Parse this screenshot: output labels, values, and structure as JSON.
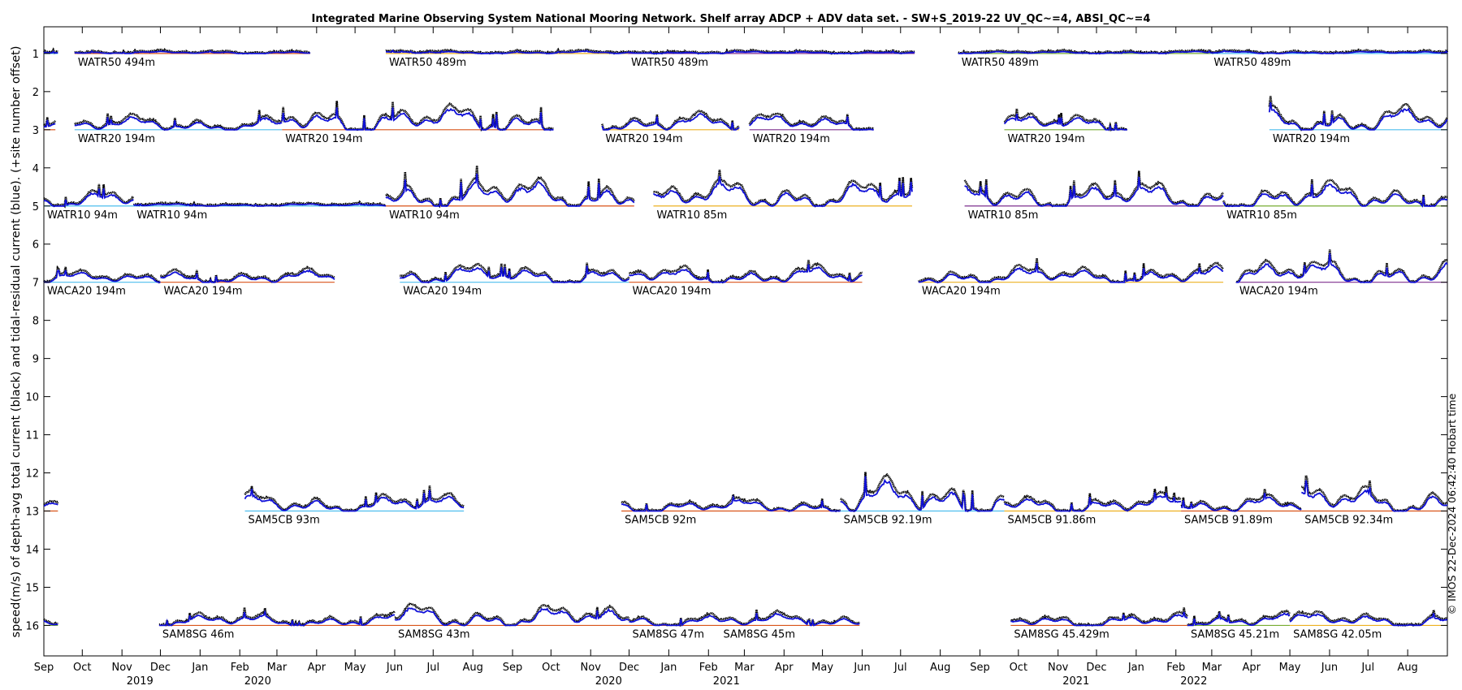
{
  "chart_data": {
    "type": "line",
    "title": "Integrated Marine Observing System National Mooring Network. Shelf array ADCP + ADV data set. - SW+S_2019-22 UV_QC~=4, ABSI_QC~=4",
    "ylabel": "speed(m/s) of depth-avg total current (black) and tidal-residual current (blue). (+site number offset)",
    "credit": "© IMOS 22-Dec-2024 06:42:40 Hobart time",
    "xlim": [
      "2019-09-01",
      "2022-09-01"
    ],
    "ylim": [
      16.8,
      0.3
    ],
    "y_axis_reversed": true,
    "grid": false,
    "y_ticks": [
      "1",
      "2",
      "3",
      "4",
      "5",
      "6",
      "7",
      "8",
      "9",
      "10",
      "11",
      "12",
      "13",
      "14",
      "15",
      "16"
    ],
    "x_ticks": [
      {
        "label": "Sep",
        "date": "2019-09-01"
      },
      {
        "label": "Oct",
        "date": "2019-10-01"
      },
      {
        "label": "Nov",
        "date": "2019-11-01"
      },
      {
        "label": "Dec",
        "date": "2019-12-01"
      },
      {
        "label": "Jan",
        "date": "2020-01-01"
      },
      {
        "label": "Feb",
        "date": "2020-02-01"
      },
      {
        "label": "Mar",
        "date": "2020-03-01"
      },
      {
        "label": "Apr",
        "date": "2020-04-01"
      },
      {
        "label": "May",
        "date": "2020-05-01"
      },
      {
        "label": "Jun",
        "date": "2020-06-01"
      },
      {
        "label": "Jul",
        "date": "2020-07-01"
      },
      {
        "label": "Aug",
        "date": "2020-08-01"
      },
      {
        "label": "Sep",
        "date": "2020-09-01"
      },
      {
        "label": "Oct",
        "date": "2020-10-01"
      },
      {
        "label": "Nov",
        "date": "2020-11-01"
      },
      {
        "label": "Dec",
        "date": "2020-12-01"
      },
      {
        "label": "Jan",
        "date": "2021-01-01"
      },
      {
        "label": "Feb",
        "date": "2021-02-01"
      },
      {
        "label": "Mar",
        "date": "2021-03-01"
      },
      {
        "label": "Apr",
        "date": "2021-04-01"
      },
      {
        "label": "May",
        "date": "2021-05-01"
      },
      {
        "label": "Jun",
        "date": "2021-06-01"
      },
      {
        "label": "Jul",
        "date": "2021-07-01"
      },
      {
        "label": "Aug",
        "date": "2021-08-01"
      },
      {
        "label": "Sep",
        "date": "2021-09-01"
      },
      {
        "label": "Oct",
        "date": "2021-10-01"
      },
      {
        "label": "Nov",
        "date": "2021-11-01"
      },
      {
        "label": "Dec",
        "date": "2021-12-01"
      },
      {
        "label": "Jan",
        "date": "2022-01-01"
      },
      {
        "label": "Feb",
        "date": "2022-02-01"
      },
      {
        "label": "Mar",
        "date": "2022-03-01"
      },
      {
        "label": "Apr",
        "date": "2022-04-01"
      },
      {
        "label": "May",
        "date": "2022-05-01"
      },
      {
        "label": "Jun",
        "date": "2022-06-01"
      },
      {
        "label": "Jul",
        "date": "2022-07-01"
      },
      {
        "label": "Aug",
        "date": "2022-08-01"
      }
    ],
    "year_labels": [
      {
        "label": "2019",
        "date": "2019-11-15"
      },
      {
        "label": "2020",
        "date": "2020-02-15"
      },
      {
        "label": "2020",
        "date": "2020-11-15"
      },
      {
        "label": "2021",
        "date": "2021-02-15"
      },
      {
        "label": "2021",
        "date": "2021-11-15"
      },
      {
        "label": "2022",
        "date": "2022-02-15"
      }
    ],
    "colors": {
      "total_current": "#000000",
      "residual_current": "#1010d8"
    },
    "deployments": [
      {
        "site": 1,
        "label": "",
        "start": "2019-09-01",
        "end": "2019-09-12",
        "baseline_color": "#4dbeee",
        "peak": 1.0
      },
      {
        "site": 1,
        "label": "WATR50 494m",
        "start": "2019-09-25",
        "end": "2020-03-27",
        "baseline_color": "#d95319",
        "peak": 1.55
      },
      {
        "site": 1,
        "label": "WATR50 489m",
        "start": "2020-05-25",
        "end": "2020-11-30",
        "baseline_color": "#edb120",
        "peak": 1.3
      },
      {
        "site": 1,
        "label": "WATR50 489m",
        "start": "2020-11-30",
        "end": "2021-07-12",
        "baseline_color": "#7e2f8e",
        "peak": 1.4
      },
      {
        "site": 1,
        "label": "WATR50 489m",
        "start": "2021-08-15",
        "end": "2022-02-28",
        "baseline_color": "#77ac30",
        "peak": 1.4
      },
      {
        "site": 1,
        "label": "WATR50 489m",
        "start": "2022-02-28",
        "end": "2022-09-01",
        "baseline_color": "#4dbeee",
        "peak": 1.45
      },
      {
        "site": 3,
        "label": "",
        "start": "2019-09-01",
        "end": "2019-09-10",
        "baseline_color": "#d95319",
        "peak": 2.6
      },
      {
        "site": 3,
        "label": "WATR20 194m",
        "start": "2019-09-25",
        "end": "2020-03-05",
        "baseline_color": "#4dbeee",
        "peak": 2.5
      },
      {
        "site": 3,
        "label": "WATR20 194m",
        "start": "2020-03-05",
        "end": "2020-10-03",
        "baseline_color": "#d95319",
        "peak": 2.1
      },
      {
        "site": 3,
        "label": "WATR20 194m",
        "start": "2020-11-10",
        "end": "2021-02-25",
        "baseline_color": "#edb120",
        "peak": 2.4
      },
      {
        "site": 3,
        "label": "WATR20 194m",
        "start": "2021-03-05",
        "end": "2021-06-10",
        "baseline_color": "#7e2f8e",
        "peak": 2.4
      },
      {
        "site": 3,
        "label": "WATR20 194m",
        "start": "2021-09-20",
        "end": "2021-12-25",
        "baseline_color": "#77ac30",
        "peak": 2.4
      },
      {
        "site": 3,
        "label": "WATR20 194m",
        "start": "2022-04-15",
        "end": "2022-09-01",
        "baseline_color": "#4dbeee",
        "peak": 2.15
      },
      {
        "site": 5,
        "label": "WATR10 94m",
        "start": "2019-09-01",
        "end": "2019-11-10",
        "baseline_color": "#4dbeee",
        "peak": 4.4
      },
      {
        "site": 5,
        "label": "WATR10 94m",
        "start": "2019-11-10",
        "end": "2020-05-25",
        "baseline_color": "#4dbeee",
        "peak": 5.0
      },
      {
        "site": 5,
        "label": "WATR10 94m",
        "start": "2020-05-25",
        "end": "2020-12-05",
        "baseline_color": "#d95319",
        "peak": 3.95
      },
      {
        "site": 5,
        "label": "WATR10 85m",
        "start": "2020-12-20",
        "end": "2021-07-10",
        "baseline_color": "#edb120",
        "peak": 4.05
      },
      {
        "site": 5,
        "label": "WATR10 85m",
        "start": "2021-08-20",
        "end": "2022-03-10",
        "baseline_color": "#7e2f8e",
        "peak": 4.1
      },
      {
        "site": 5,
        "label": "WATR10 85m",
        "start": "2022-03-10",
        "end": "2022-09-01",
        "baseline_color": "#77ac30",
        "peak": 4.15
      },
      {
        "site": 7,
        "label": "WACA20 194m",
        "start": "2019-09-01",
        "end": "2019-12-01",
        "baseline_color": "#4dbeee",
        "peak": 6.6
      },
      {
        "site": 7,
        "label": "WACA20 194m",
        "start": "2019-12-01",
        "end": "2020-04-15",
        "baseline_color": "#d95319",
        "peak": 6.55
      },
      {
        "site": 7,
        "label": "WACA20 194m",
        "start": "2020-06-05",
        "end": "2020-12-01",
        "baseline_color": "#4dbeee",
        "peak": 6.35
      },
      {
        "site": 7,
        "label": "WACA20 194m",
        "start": "2020-12-01",
        "end": "2021-06-01",
        "baseline_color": "#d95319",
        "peak": 6.4
      },
      {
        "site": 7,
        "label": "WACA20 194m",
        "start": "2021-07-15",
        "end": "2022-03-10",
        "baseline_color": "#edb120",
        "peak": 6.4
      },
      {
        "site": 7,
        "label": "WACA20 194m",
        "start": "2022-03-20",
        "end": "2022-09-01",
        "baseline_color": "#7e2f8e",
        "peak": 6.15
      },
      {
        "site": 13,
        "label": "",
        "start": "2019-09-01",
        "end": "2019-09-12",
        "baseline_color": "#d95319",
        "peak": 12.7
      },
      {
        "site": 13,
        "label": "SAM5CB 93m",
        "start": "2020-02-05",
        "end": "2020-07-25",
        "baseline_color": "#4dbeee",
        "peak": 12.35
      },
      {
        "site": 13,
        "label": "SAM5CB 92m",
        "start": "2020-11-25",
        "end": "2021-05-15",
        "baseline_color": "#d95319",
        "peak": 12.55
      },
      {
        "site": 13,
        "label": "SAM5CB 92.19m",
        "start": "2021-05-15",
        "end": "2021-09-20",
        "baseline_color": "#4dbeee",
        "peak": 11.85
      },
      {
        "site": 13,
        "label": "SAM5CB 91.86m",
        "start": "2021-09-20",
        "end": "2022-02-05",
        "baseline_color": "#edb120",
        "peak": 12.4
      },
      {
        "site": 13,
        "label": "SAM5CB 91.89m",
        "start": "2022-02-05",
        "end": "2022-05-10",
        "baseline_color": "#d95319",
        "peak": 12.45
      },
      {
        "site": 13,
        "label": "SAM5CB 92.34m",
        "start": "2022-05-10",
        "end": "2022-09-01",
        "baseline_color": "#d95319",
        "peak": 12.05
      },
      {
        "site": 16,
        "label": "",
        "start": "2019-09-01",
        "end": "2019-09-12",
        "baseline_color": "#77ac30",
        "peak": 15.7
      },
      {
        "site": 16,
        "label": "SAM8SG 46m",
        "start": "2019-11-30",
        "end": "2020-06-01",
        "baseline_color": "#d95319",
        "peak": 15.55
      },
      {
        "site": 16,
        "label": "SAM8SG 43m",
        "start": "2020-06-01",
        "end": "2020-12-01",
        "baseline_color": "#d95319",
        "peak": 15.25
      },
      {
        "site": 16,
        "label": "SAM8SG 47m",
        "start": "2020-12-01",
        "end": "2021-02-10",
        "baseline_color": "#d95319",
        "peak": 15.55
      },
      {
        "site": 16,
        "label": "SAM8SG 45m",
        "start": "2021-02-10",
        "end": "2021-05-30",
        "baseline_color": "#d95319",
        "peak": 15.55
      },
      {
        "site": 16,
        "label": "SAM8SG 45.429m",
        "start": "2021-09-25",
        "end": "2022-02-10",
        "baseline_color": "#d95319",
        "peak": 15.55
      },
      {
        "site": 16,
        "label": "SAM8SG 45.21m",
        "start": "2022-02-10",
        "end": "2022-05-01",
        "baseline_color": "#77ac30",
        "peak": 15.55
      },
      {
        "site": 16,
        "label": "SAM8SG 42.05m",
        "start": "2022-05-01",
        "end": "2022-09-01",
        "baseline_color": "#edb120",
        "peak": 15.5
      }
    ]
  }
}
